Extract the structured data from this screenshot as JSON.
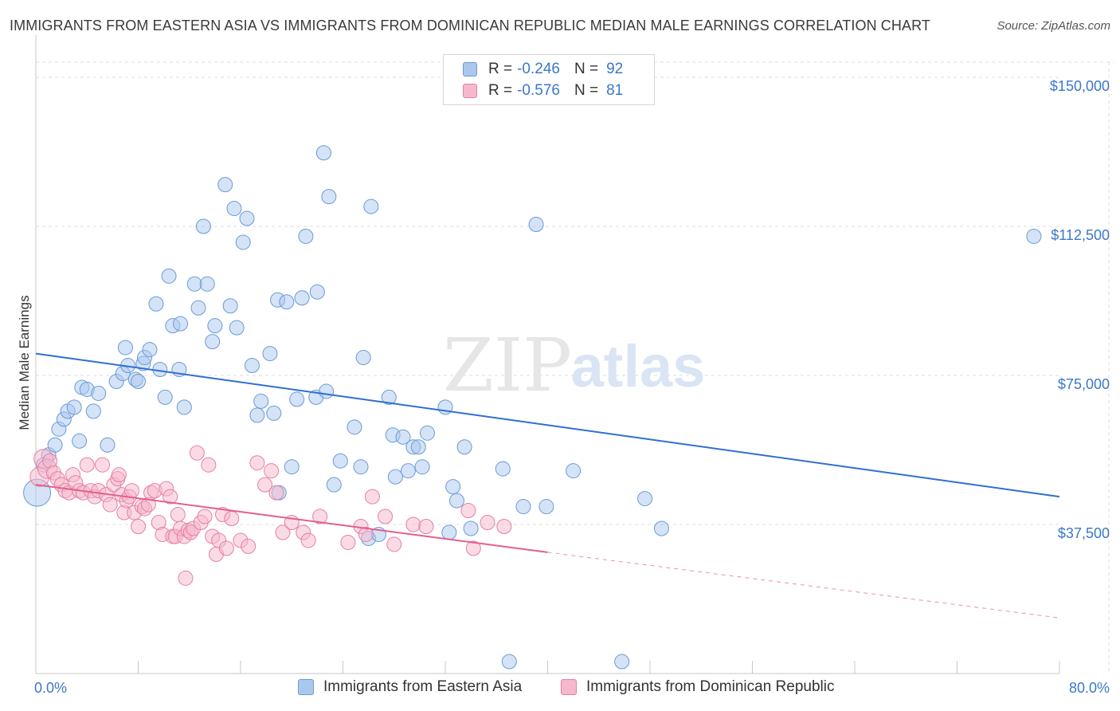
{
  "title": "IMMIGRANTS FROM EASTERN ASIA VS IMMIGRANTS FROM DOMINICAN REPUBLIC MEDIAN MALE EARNINGS CORRELATION CHART",
  "source": "Source: ZipAtlas.com",
  "watermark": {
    "zip": "ZIP",
    "atlas": "atlas"
  },
  "legend": {
    "rows": [
      {
        "r_label": "R =",
        "r_value": "-0.246",
        "n_label": "N =",
        "n_value": "92"
      },
      {
        "r_label": "R =",
        "r_value": "-0.576",
        "n_label": "N =",
        "n_value": "81"
      }
    ]
  },
  "colors": {
    "blue_fill": "#aac8ee",
    "blue_stroke": "#6a9ad8",
    "blue_line": "#2f6fd0",
    "pink_fill": "#f6b8cc",
    "pink_stroke": "#e67fa3",
    "pink_line": "#e0608e",
    "grid": "#dcdcdc",
    "tick_text": "#3b78c9"
  },
  "chart_data": {
    "type": "scatter",
    "title": "IMMIGRANTS FROM EASTERN ASIA VS IMMIGRANTS FROM DOMINICAN REPUBLIC MEDIAN MALE EARNINGS CORRELATION CHART",
    "xlabel": "",
    "ylabel": "Median Male Earnings",
    "xlim": [
      0,
      80
    ],
    "ylim": [
      0,
      155000
    ],
    "x_tick_labels": [
      "0.0%",
      "80.0%"
    ],
    "y_ticks": [
      37500,
      75000,
      112500,
      150000
    ],
    "y_tick_labels": [
      "$37,500",
      "$75,000",
      "$112,500",
      "$150,000"
    ],
    "grid": true,
    "legend_position": "top-center",
    "series": [
      {
        "name": "Immigrants from Eastern Asia",
        "r": -0.246,
        "n": 92,
        "trend": {
          "x": [
            0,
            80
          ],
          "y": [
            80500,
            44500
          ]
        },
        "points": [
          [
            0.1,
            45500
          ],
          [
            0.6,
            52500
          ],
          [
            1.0,
            55000
          ],
          [
            1.5,
            57500
          ],
          [
            1.8,
            61500
          ],
          [
            2.2,
            64000
          ],
          [
            2.5,
            66000
          ],
          [
            3.0,
            67000
          ],
          [
            3.4,
            58500
          ],
          [
            3.6,
            72000
          ],
          [
            4.0,
            71500
          ],
          [
            4.5,
            66000
          ],
          [
            4.9,
            70500
          ],
          [
            5.6,
            57500
          ],
          [
            6.3,
            73500
          ],
          [
            6.8,
            75500
          ],
          [
            7.0,
            82000
          ],
          [
            7.2,
            77500
          ],
          [
            7.8,
            74000
          ],
          [
            8.0,
            73500
          ],
          [
            8.4,
            78000
          ],
          [
            8.5,
            79500
          ],
          [
            8.9,
            81500
          ],
          [
            9.4,
            93000
          ],
          [
            9.7,
            76500
          ],
          [
            10.1,
            69500
          ],
          [
            10.4,
            100000
          ],
          [
            10.7,
            87500
          ],
          [
            11.2,
            76500
          ],
          [
            11.3,
            88000
          ],
          [
            11.6,
            67000
          ],
          [
            12.4,
            98000
          ],
          [
            12.7,
            92000
          ],
          [
            13.1,
            112500
          ],
          [
            13.4,
            98000
          ],
          [
            13.8,
            83500
          ],
          [
            14.0,
            87500
          ],
          [
            14.8,
            123000
          ],
          [
            15.2,
            92500
          ],
          [
            15.5,
            117000
          ],
          [
            15.7,
            87000
          ],
          [
            16.2,
            108500
          ],
          [
            16.5,
            114500
          ],
          [
            16.9,
            77500
          ],
          [
            17.3,
            65000
          ],
          [
            17.6,
            68500
          ],
          [
            18.3,
            80500
          ],
          [
            18.6,
            65500
          ],
          [
            18.9,
            94000
          ],
          [
            19.0,
            45500
          ],
          [
            19.6,
            93500
          ],
          [
            20.0,
            52000
          ],
          [
            20.4,
            69000
          ],
          [
            20.8,
            94500
          ],
          [
            21.1,
            110000
          ],
          [
            21.9,
            69500
          ],
          [
            22.0,
            96000
          ],
          [
            22.5,
            131000
          ],
          [
            22.7,
            71000
          ],
          [
            22.9,
            120000
          ],
          [
            23.3,
            47500
          ],
          [
            23.8,
            53500
          ],
          [
            24.9,
            62000
          ],
          [
            25.4,
            52000
          ],
          [
            25.6,
            79500
          ],
          [
            26.0,
            34000
          ],
          [
            26.2,
            117500
          ],
          [
            26.8,
            35000
          ],
          [
            27.6,
            69500
          ],
          [
            27.9,
            60000
          ],
          [
            28.1,
            49500
          ],
          [
            28.7,
            59500
          ],
          [
            29.1,
            51000
          ],
          [
            29.5,
            57000
          ],
          [
            29.9,
            57000
          ],
          [
            30.2,
            52000
          ],
          [
            30.6,
            60500
          ],
          [
            32.0,
            67000
          ],
          [
            32.3,
            35500
          ],
          [
            32.6,
            47000
          ],
          [
            32.9,
            43500
          ],
          [
            33.5,
            57000
          ],
          [
            34.0,
            36500
          ],
          [
            36.5,
            51500
          ],
          [
            37.0,
            3000
          ],
          [
            38.1,
            42000
          ],
          [
            39.1,
            113000
          ],
          [
            39.9,
            42000
          ],
          [
            42.0,
            51000
          ],
          [
            45.8,
            3000
          ],
          [
            47.6,
            44000
          ],
          [
            48.9,
            36500
          ],
          [
            78.0,
            110000
          ]
        ]
      },
      {
        "name": "Immigrants from Dominican Republic",
        "r": -0.576,
        "n": 81,
        "trend": {
          "x": [
            0,
            40
          ],
          "y": [
            47500,
            30500
          ]
        },
        "trend_dashed": {
          "x": [
            40,
            80
          ],
          "y": [
            30500,
            14000
          ]
        },
        "points": [
          [
            0.3,
            49500
          ],
          [
            0.6,
            54000
          ],
          [
            0.9,
            51500
          ],
          [
            1.1,
            53500
          ],
          [
            1.4,
            50500
          ],
          [
            1.7,
            49000
          ],
          [
            2.0,
            47500
          ],
          [
            2.3,
            46000
          ],
          [
            2.6,
            45500
          ],
          [
            2.9,
            50000
          ],
          [
            3.1,
            48000
          ],
          [
            3.4,
            46000
          ],
          [
            3.7,
            45500
          ],
          [
            4.0,
            52500
          ],
          [
            4.3,
            46000
          ],
          [
            4.6,
            44500
          ],
          [
            4.9,
            46000
          ],
          [
            5.2,
            52500
          ],
          [
            5.5,
            45000
          ],
          [
            5.8,
            42500
          ],
          [
            6.1,
            47500
          ],
          [
            6.4,
            49000
          ],
          [
            6.5,
            50000
          ],
          [
            6.7,
            45000
          ],
          [
            6.9,
            40500
          ],
          [
            7.1,
            43500
          ],
          [
            7.3,
            44500
          ],
          [
            7.5,
            46000
          ],
          [
            7.7,
            40500
          ],
          [
            8.0,
            37000
          ],
          [
            8.3,
            42000
          ],
          [
            8.5,
            41500
          ],
          [
            8.8,
            42500
          ],
          [
            9.0,
            45500
          ],
          [
            9.3,
            46000
          ],
          [
            9.6,
            38000
          ],
          [
            9.9,
            35000
          ],
          [
            10.2,
            46500
          ],
          [
            10.5,
            44500
          ],
          [
            10.7,
            34500
          ],
          [
            10.9,
            34500
          ],
          [
            11.1,
            40000
          ],
          [
            11.3,
            36500
          ],
          [
            11.6,
            34500
          ],
          [
            11.7,
            24000
          ],
          [
            11.9,
            36000
          ],
          [
            12.1,
            35500
          ],
          [
            12.3,
            36500
          ],
          [
            12.6,
            55500
          ],
          [
            12.9,
            38000
          ],
          [
            13.2,
            39500
          ],
          [
            13.5,
            52500
          ],
          [
            13.8,
            34500
          ],
          [
            14.1,
            30000
          ],
          [
            14.3,
            33500
          ],
          [
            14.6,
            40000
          ],
          [
            14.9,
            31500
          ],
          [
            15.3,
            39000
          ],
          [
            16.0,
            33500
          ],
          [
            16.6,
            32000
          ],
          [
            17.3,
            53000
          ],
          [
            17.9,
            47500
          ],
          [
            18.4,
            51000
          ],
          [
            18.8,
            45500
          ],
          [
            19.3,
            35500
          ],
          [
            20.0,
            38000
          ],
          [
            20.9,
            35500
          ],
          [
            21.3,
            33500
          ],
          [
            22.2,
            39500
          ],
          [
            24.4,
            33000
          ],
          [
            25.4,
            37000
          ],
          [
            25.8,
            35000
          ],
          [
            26.3,
            44500
          ],
          [
            27.3,
            39500
          ],
          [
            28.0,
            32500
          ],
          [
            29.5,
            37500
          ],
          [
            30.5,
            37000
          ],
          [
            33.8,
            41000
          ],
          [
            34.2,
            31500
          ],
          [
            35.3,
            38000
          ],
          [
            36.6,
            37000
          ]
        ]
      }
    ]
  }
}
